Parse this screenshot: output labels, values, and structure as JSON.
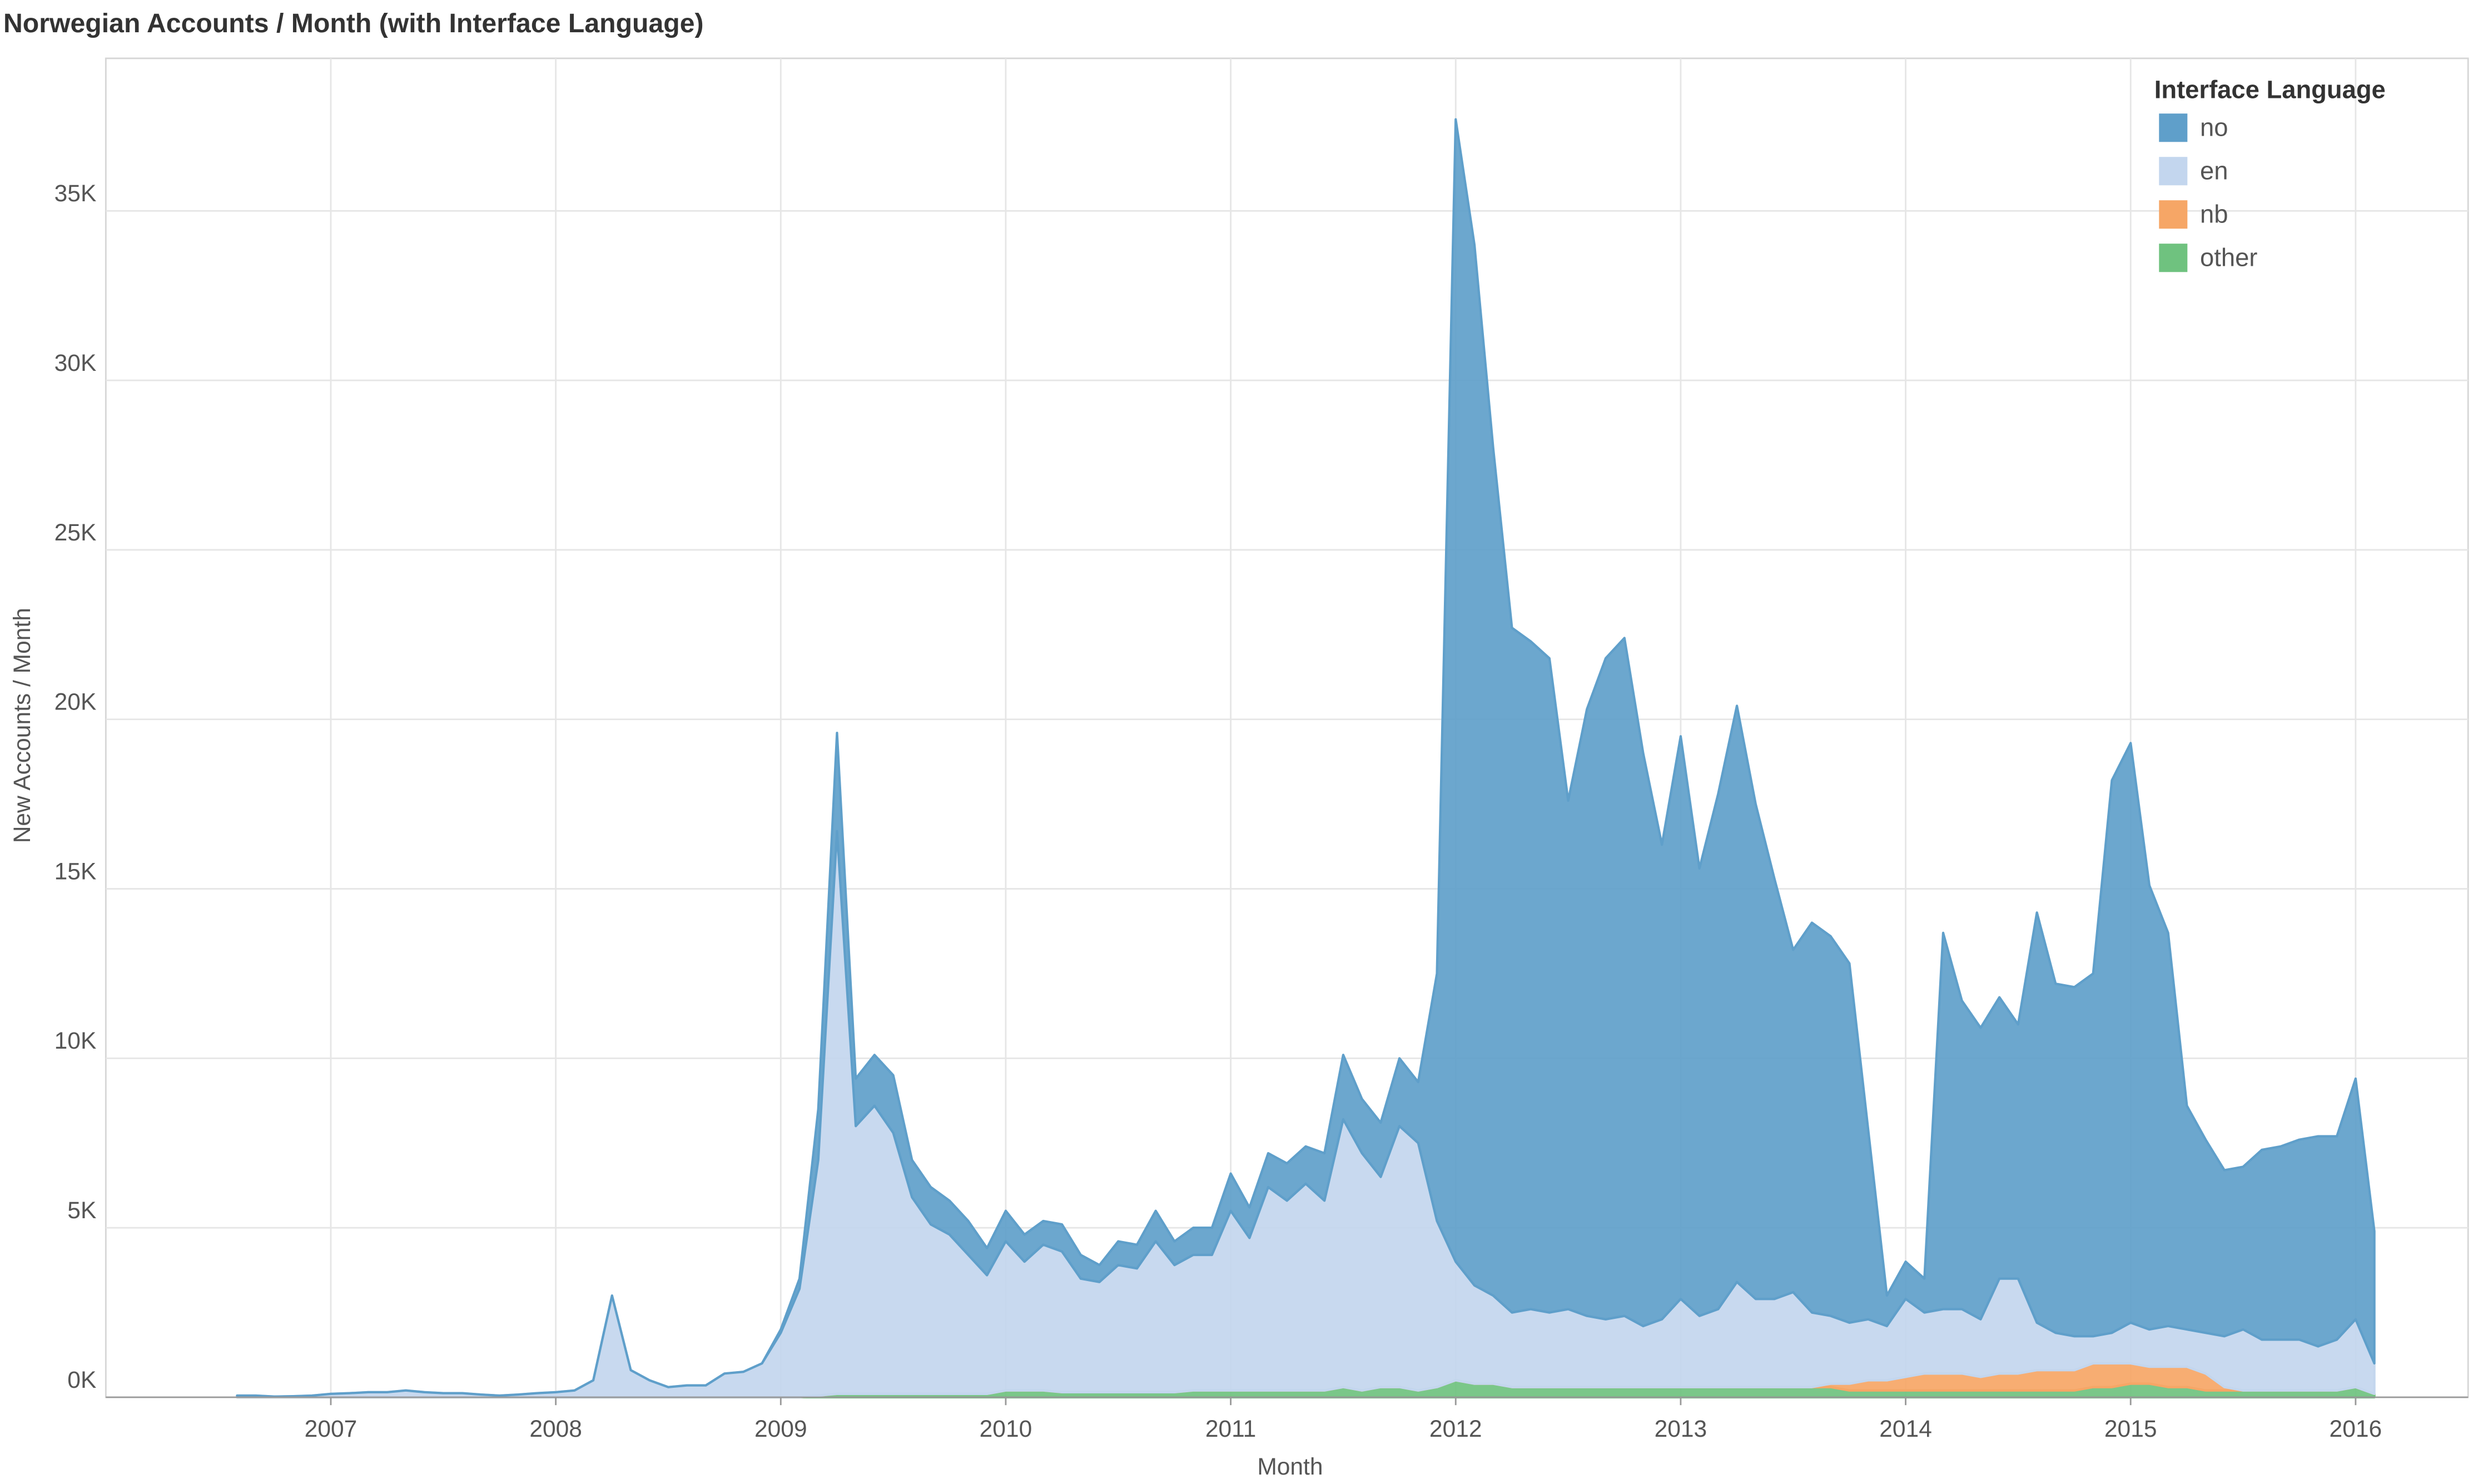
{
  "chart_data": {
    "type": "stacked_area",
    "title": "Norwegian Accounts / Month (with Interface Language)",
    "x_label": "Month",
    "y_label": "New Accounts / Month",
    "legend_title": "Interface Language",
    "legend": "top-right",
    "grid": true,
    "x": [
      "2006-08",
      "2006-09",
      "2006-10",
      "2006-11",
      "2006-12",
      "2007-01",
      "2007-02",
      "2007-03",
      "2007-04",
      "2007-05",
      "2007-06",
      "2007-07",
      "2007-08",
      "2007-09",
      "2007-10",
      "2007-11",
      "2007-12",
      "2008-01",
      "2008-02",
      "2008-03",
      "2008-04",
      "2008-05",
      "2008-06",
      "2008-07",
      "2008-08",
      "2008-09",
      "2008-10",
      "2008-11",
      "2008-12",
      "2009-01",
      "2009-02",
      "2009-03",
      "2009-04",
      "2009-05",
      "2009-06",
      "2009-07",
      "2009-08",
      "2009-09",
      "2009-10",
      "2009-11",
      "2009-12",
      "2010-01",
      "2010-02",
      "2010-03",
      "2010-04",
      "2010-05",
      "2010-06",
      "2010-07",
      "2010-08",
      "2010-09",
      "2010-10",
      "2010-11",
      "2010-12",
      "2011-01",
      "2011-02",
      "2011-03",
      "2011-04",
      "2011-05",
      "2011-06",
      "2011-07",
      "2011-08",
      "2011-09",
      "2011-10",
      "2011-11",
      "2011-12",
      "2012-01",
      "2012-02",
      "2012-03",
      "2012-04",
      "2012-05",
      "2012-06",
      "2012-07",
      "2012-08",
      "2012-09",
      "2012-10",
      "2012-11",
      "2012-12",
      "2013-01",
      "2013-02",
      "2013-03",
      "2013-04",
      "2013-05",
      "2013-06",
      "2013-07",
      "2013-08",
      "2013-09",
      "2013-10",
      "2013-11",
      "2013-12",
      "2014-01",
      "2014-02",
      "2014-03",
      "2014-04",
      "2014-05",
      "2014-06",
      "2014-07",
      "2014-08",
      "2014-09",
      "2014-10",
      "2014-11",
      "2014-12",
      "2015-01",
      "2015-02",
      "2015-03",
      "2015-04",
      "2015-05",
      "2015-06",
      "2015-07",
      "2015-08",
      "2015-09",
      "2015-10",
      "2015-11",
      "2015-12",
      "2016-01",
      "2016-02"
    ],
    "xlim": [
      "2006-01",
      "2016-07"
    ],
    "xticks": [
      {
        "value": "2007-01",
        "label": "2007"
      },
      {
        "value": "2008-01",
        "label": "2008"
      },
      {
        "value": "2009-01",
        "label": "2009"
      },
      {
        "value": "2010-01",
        "label": "2010"
      },
      {
        "value": "2011-01",
        "label": "2011"
      },
      {
        "value": "2012-01",
        "label": "2012"
      },
      {
        "value": "2013-01",
        "label": "2013"
      },
      {
        "value": "2014-01",
        "label": "2014"
      },
      {
        "value": "2015-01",
        "label": "2015"
      },
      {
        "value": "2016-01",
        "label": "2016"
      }
    ],
    "ylim": [
      0,
      39500
    ],
    "yticks": [
      {
        "value": 0,
        "label": "0K"
      },
      {
        "value": 5000,
        "label": "5K"
      },
      {
        "value": 10000,
        "label": "10K"
      },
      {
        "value": 15000,
        "label": "15K"
      },
      {
        "value": 20000,
        "label": "20K"
      },
      {
        "value": 25000,
        "label": "25K"
      },
      {
        "value": 30000,
        "label": "30K"
      },
      {
        "value": 35000,
        "label": "35K"
      }
    ],
    "series": [
      {
        "name": "no",
        "color": "#5f9fca",
        "values": [
          0,
          0,
          0,
          0,
          0,
          0,
          0,
          0,
          0,
          0,
          0,
          0,
          0,
          0,
          0,
          0,
          0,
          0,
          0,
          0,
          0,
          0,
          0,
          0,
          0,
          0,
          0,
          0,
          0,
          100,
          300,
          1500,
          2900,
          1400,
          1500,
          1700,
          1100,
          1100,
          1000,
          1000,
          800,
          900,
          800,
          700,
          800,
          700,
          500,
          700,
          700,
          900,
          700,
          800,
          800,
          1100,
          900,
          1000,
          1100,
          1100,
          1400,
          1900,
          1600,
          1600,
          2000,
          1800,
          7300,
          33700,
          30700,
          25000,
          20200,
          19700,
          19300,
          15000,
          17900,
          19500,
          20000,
          16900,
          14000,
          16600,
          13200,
          15200,
          17000,
          14600,
          12400,
          10100,
          11500,
          11200,
          10600,
          5600,
          900,
          1100,
          1000,
          11100,
          9100,
          8600,
          8300,
          7500,
          12100,
          10300,
          10300,
          10700,
          16300,
          17100,
          13100,
          11600,
          6600,
          5700,
          4900,
          4800,
          5600,
          5700,
          5900,
          6200,
          6000,
          7100,
          3900
        ]
      },
      {
        "name": "en",
        "color": "#c3d6ee",
        "values": [
          50,
          50,
          20,
          30,
          50,
          100,
          120,
          150,
          150,
          200,
          150,
          120,
          120,
          80,
          50,
          80,
          120,
          150,
          200,
          500,
          3000,
          800,
          500,
          300,
          350,
          350,
          700,
          750,
          1000,
          1900,
          3200,
          6950,
          16600,
          7900,
          8500,
          7700,
          5800,
          5000,
          4700,
          4100,
          3500,
          4400,
          3800,
          4300,
          4150,
          3350,
          3250,
          3750,
          3650,
          4450,
          3750,
          4000,
          4000,
          5300,
          4500,
          6000,
          5600,
          6100,
          5600,
          7900,
          7000,
          6200,
          7700,
          7300,
          4900,
          3500,
          2900,
          2600,
          2200,
          2300,
          2200,
          2300,
          2100,
          2000,
          2100,
          1800,
          2000,
          2600,
          2100,
          2300,
          3100,
          2600,
          2600,
          2800,
          2200,
          2000,
          1800,
          1800,
          1600,
          2300,
          1800,
          1900,
          1900,
          1700,
          2800,
          2800,
          1400,
          1100,
          1000,
          800,
          900,
          1200,
          1100,
          1200,
          1100,
          1200,
          1500,
          1800,
          1500,
          1500,
          1500,
          1300,
          1500,
          2000,
          900
        ]
      },
      {
        "name": "nb",
        "color": "#f6a666",
        "values": [
          0,
          0,
          0,
          0,
          0,
          0,
          0,
          0,
          0,
          0,
          0,
          0,
          0,
          0,
          0,
          0,
          0,
          0,
          0,
          0,
          0,
          0,
          0,
          0,
          0,
          0,
          0,
          0,
          0,
          0,
          0,
          0,
          0,
          0,
          0,
          0,
          0,
          0,
          0,
          0,
          0,
          0,
          0,
          0,
          0,
          0,
          0,
          0,
          0,
          0,
          0,
          0,
          0,
          0,
          0,
          0,
          0,
          0,
          0,
          0,
          0,
          0,
          0,
          0,
          0,
          0,
          0,
          0,
          0,
          0,
          0,
          0,
          0,
          0,
          0,
          0,
          0,
          0,
          0,
          0,
          0,
          0,
          0,
          0,
          0,
          100,
          200,
          300,
          300,
          400,
          500,
          500,
          500,
          400,
          500,
          500,
          600,
          600,
          600,
          700,
          700,
          600,
          500,
          600,
          600,
          500,
          100,
          0,
          0,
          0,
          0,
          0,
          0,
          0,
          0
        ]
      },
      {
        "name": "other",
        "color": "#6fc27f",
        "values": [
          0,
          0,
          0,
          0,
          0,
          0,
          0,
          0,
          0,
          0,
          0,
          0,
          0,
          0,
          0,
          0,
          0,
          0,
          0,
          0,
          0,
          0,
          0,
          0,
          0,
          0,
          0,
          0,
          0,
          0,
          0,
          50,
          100,
          100,
          100,
          100,
          100,
          100,
          100,
          100,
          100,
          200,
          200,
          200,
          150,
          150,
          150,
          150,
          150,
          150,
          150,
          200,
          200,
          200,
          200,
          200,
          200,
          200,
          200,
          300,
          200,
          300,
          300,
          200,
          300,
          500,
          400,
          400,
          300,
          300,
          300,
          300,
          300,
          300,
          300,
          300,
          300,
          300,
          300,
          300,
          300,
          300,
          300,
          300,
          300,
          300,
          200,
          200,
          200,
          200,
          200,
          200,
          200,
          200,
          200,
          200,
          200,
          200,
          200,
          300,
          300,
          400,
          400,
          300,
          300,
          200,
          200,
          200,
          200,
          200,
          200,
          200,
          200,
          300,
          100
        ]
      }
    ]
  }
}
